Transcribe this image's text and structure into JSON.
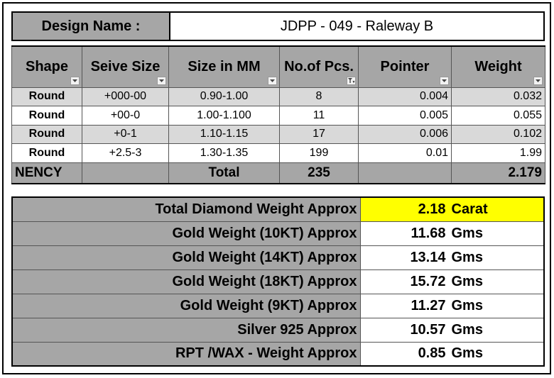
{
  "header": {
    "label": "Design Name :",
    "value": "JDPP - 049 - Raleway B"
  },
  "stones_table": {
    "columns": [
      "Shape",
      "Seive Size",
      "Size in MM",
      "No.of Pcs.",
      "Pointer",
      "Weight"
    ],
    "rows": [
      {
        "shape": "Round",
        "seive": "+000-00",
        "mm": "0.90-1.00",
        "pcs": "8",
        "pointer": "0.004",
        "weight": "0.032"
      },
      {
        "shape": "Round",
        "seive": "+00-0",
        "mm": "1.00-1.100",
        "pcs": "11",
        "pointer": "0.005",
        "weight": "0.055"
      },
      {
        "shape": "Round",
        "seive": "+0-1",
        "mm": "1.10-1.15",
        "pcs": "17",
        "pointer": "0.006",
        "weight": "0.102"
      },
      {
        "shape": "Round",
        "seive": "+2.5-3",
        "mm": "1.30-1.35",
        "pcs": "199",
        "pointer": "0.01",
        "weight": "1.99"
      }
    ],
    "total": {
      "first": "NENCY",
      "label": "Total",
      "pcs": "235",
      "weight": "2.179"
    }
  },
  "summary": [
    {
      "label": "Total Diamond Weight Approx",
      "value": "2.18",
      "unit": "Carat",
      "highlight": true
    },
    {
      "label": "Gold Weight (10KT) Approx",
      "value": "11.68",
      "unit": "Gms"
    },
    {
      "label": "Gold Weight (14KT) Approx",
      "value": "13.14",
      "unit": "Gms"
    },
    {
      "label": "Gold Weight (18KT) Approx",
      "value": "15.72",
      "unit": "Gms"
    },
    {
      "label": "Gold Weight (9KT) Approx",
      "value": "11.27",
      "unit": "Gms"
    },
    {
      "label": "Silver 925 Approx",
      "value": "10.57",
      "unit": "Gms"
    },
    {
      "label": "RPT /WAX - Weight Approx",
      "value": "0.85",
      "unit": "Gms"
    }
  ],
  "colors": {
    "header_grey": "#a6a6a6",
    "band_grey": "#d9d9d9",
    "highlight": "#ffff00"
  }
}
